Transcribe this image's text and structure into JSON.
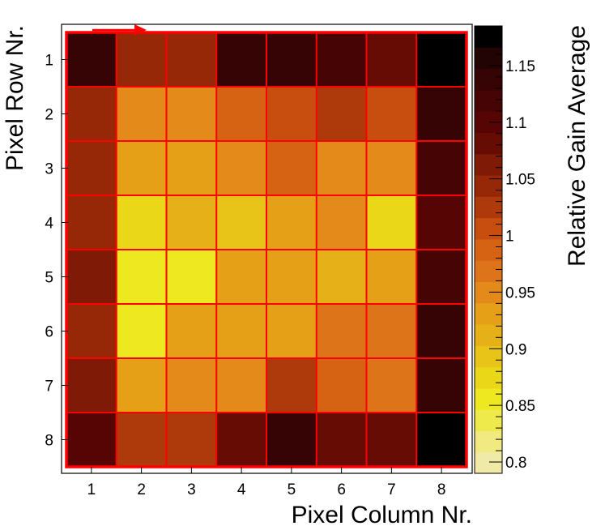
{
  "chart_data": {
    "type": "heatmap",
    "title": "",
    "xlabel": "Pixel Column Nr.",
    "ylabel": "Pixel Row Nr.",
    "zlabel": "Relative Gain Average",
    "x_categories": [
      "1",
      "2",
      "3",
      "4",
      "5",
      "6",
      "7",
      "8"
    ],
    "y_categories": [
      "1",
      "2",
      "3",
      "4",
      "5",
      "6",
      "7",
      "8"
    ],
    "zlim": [
      0.79,
      1.185
    ],
    "colorbar_ticks": [
      "0.8",
      "0.85",
      "0.9",
      "0.95",
      "1",
      "1.05",
      "1.1",
      "1.15"
    ],
    "colormap": [
      "#f0eaa8",
      "#f0ea80",
      "#eeea4c",
      "#eee820",
      "#ead818",
      "#e8c418",
      "#e6b018",
      "#e6a018",
      "#e48a1a",
      "#de741a",
      "#d66214",
      "#c84e10",
      "#ae3a0c",
      "#962808",
      "#7e1a06",
      "#660c04",
      "#560404",
      "#460404",
      "#360404",
      "#220404",
      "#000000"
    ],
    "grid_color": "#ff0000",
    "values": [
      [
        1.13,
        1.04,
        1.04,
        1.14,
        1.13,
        1.11,
        1.08,
        1.185
      ],
      [
        1.05,
        0.95,
        0.95,
        0.99,
        1.0,
        1.02,
        1.0,
        1.13
      ],
      [
        1.05,
        0.93,
        0.93,
        0.95,
        0.99,
        0.945,
        0.95,
        1.11
      ],
      [
        1.05,
        0.87,
        0.905,
        0.895,
        0.925,
        0.945,
        0.88,
        1.1
      ],
      [
        1.07,
        0.865,
        0.865,
        0.93,
        0.925,
        0.915,
        0.925,
        1.11
      ],
      [
        1.05,
        0.865,
        0.93,
        0.925,
        0.94,
        0.96,
        0.965,
        1.13
      ],
      [
        1.07,
        0.935,
        0.945,
        0.945,
        1.02,
        0.99,
        0.96,
        1.13
      ],
      [
        1.1,
        1.02,
        1.02,
        1.08,
        1.13,
        1.08,
        1.08,
        1.185
      ]
    ]
  }
}
